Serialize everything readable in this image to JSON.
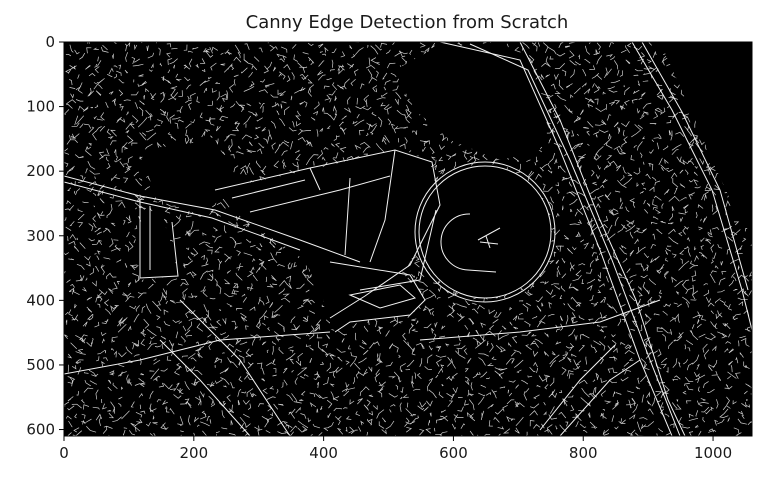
{
  "chart_data": {
    "type": "heatmap",
    "title": "Canny Edge Detection from Scratch",
    "xlabel": "",
    "ylabel": "",
    "xlim": [
      0,
      1060
    ],
    "ylim": [
      610,
      0
    ],
    "x_ticks": [
      0,
      200,
      400,
      600,
      800,
      1000
    ],
    "y_ticks": [
      0,
      100,
      200,
      300,
      400,
      500,
      600
    ],
    "x_tick_labels": [
      "0",
      "200",
      "400",
      "600",
      "800",
      "1000"
    ],
    "y_tick_labels": [
      "0",
      "100",
      "200",
      "300",
      "400",
      "500",
      "600"
    ],
    "colormap": "gray",
    "background_color": "#000000",
    "edge_color": "#ffffff",
    "grid": false
  }
}
